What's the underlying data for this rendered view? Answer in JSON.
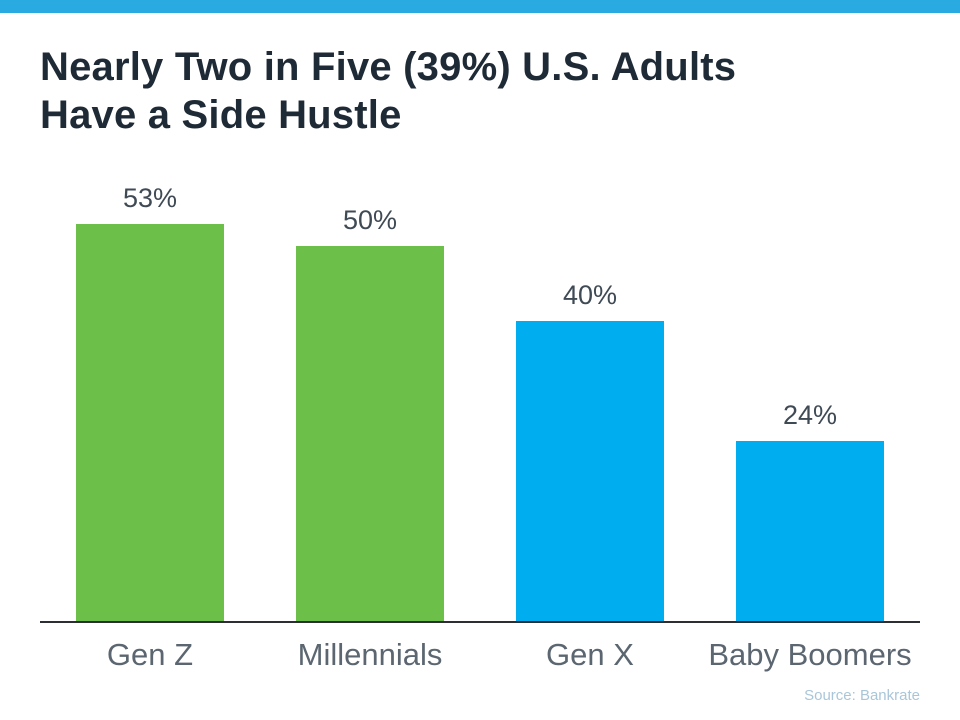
{
  "colors": {
    "accent_strip": "#29abe2",
    "green_bar": "#6cc04a",
    "blue_bar": "#00adee",
    "title_text": "#1e2a36"
  },
  "title": {
    "line1": "Nearly Two in Five (39%) U.S. Adults",
    "line2": "Have a Side Hustle"
  },
  "source": "Source: Bankrate",
  "chart_data": {
    "type": "bar",
    "title": "Nearly Two in Five (39%) U.S. Adults Have a Side Hustle",
    "categories": [
      "Gen Z",
      "Millennials",
      "Gen X",
      "Baby Boomers"
    ],
    "values": [
      53,
      50,
      40,
      24
    ],
    "value_labels": [
      "53%",
      "50%",
      "40%",
      "24%"
    ],
    "bar_colors": [
      "#6cc04a",
      "#6cc04a",
      "#00adee",
      "#00adee"
    ],
    "xlabel": "",
    "ylabel": "",
    "ylim": [
      0,
      60
    ],
    "grid": false,
    "legend": false,
    "unit": "%"
  }
}
